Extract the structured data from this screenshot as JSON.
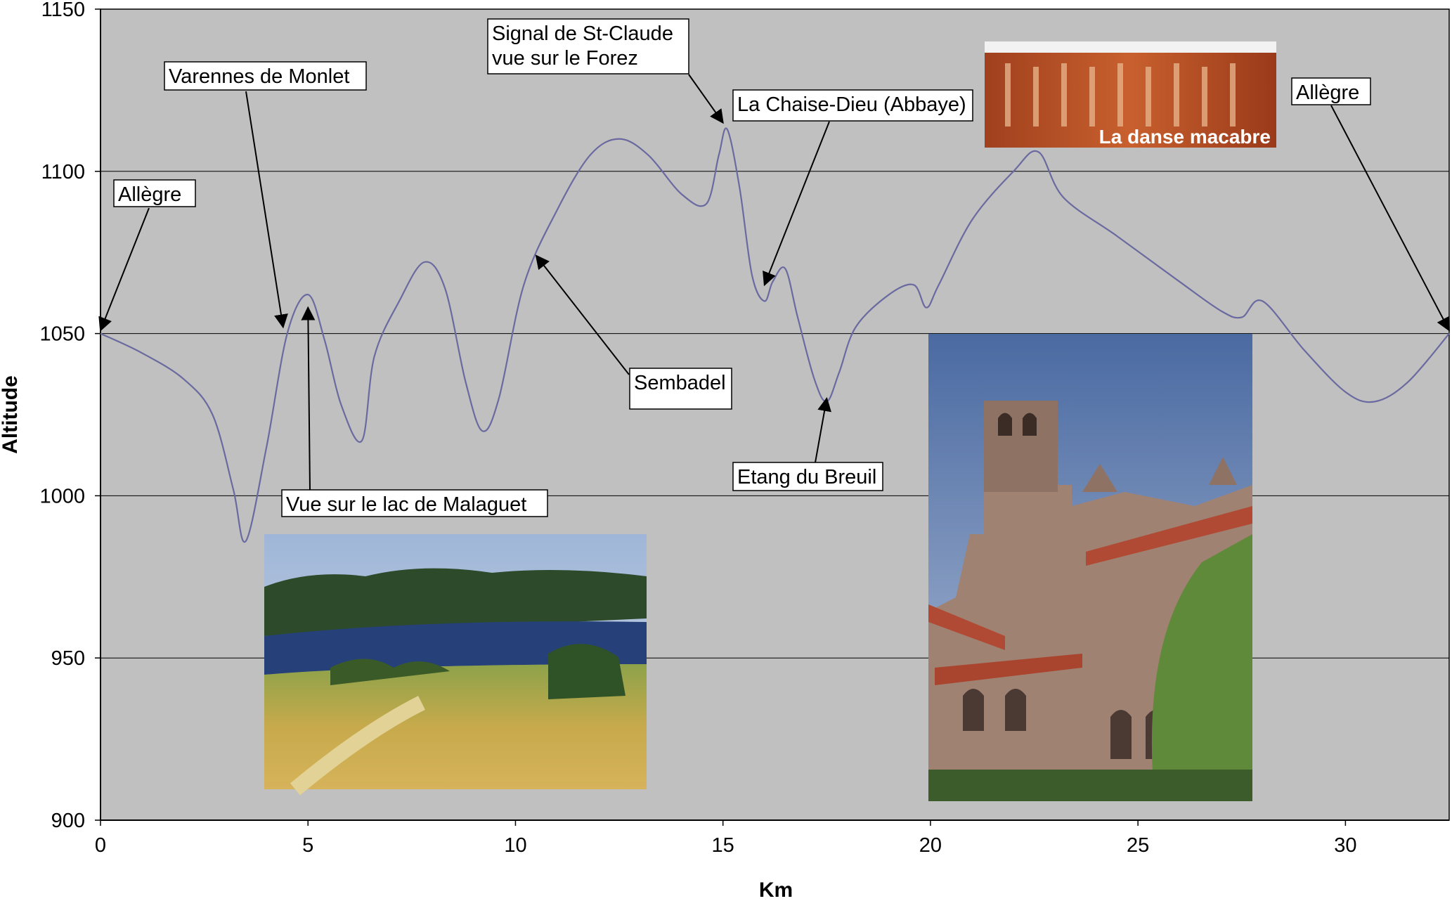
{
  "chart_data": {
    "type": "line",
    "title": "",
    "xlabel": "Km",
    "ylabel": "Altitude",
    "xlim": [
      0,
      32.5
    ],
    "ylim": [
      900,
      1150
    ],
    "x_ticks": [
      0,
      5,
      10,
      15,
      20,
      25,
      30
    ],
    "y_ticks": [
      900,
      950,
      1000,
      1050,
      1100,
      1150
    ],
    "grid": "horizontal",
    "background": "#c0c0c0",
    "series": [
      {
        "color": "#6a6aa0",
        "x": [
          0,
          1,
          2,
          2.7,
          3.2,
          3.5,
          4.0,
          4.5,
          5.0,
          5.4,
          5.8,
          6.3,
          6.6,
          7.2,
          7.8,
          8.3,
          8.8,
          9.2,
          9.6,
          10.2,
          11.0,
          11.8,
          12.5,
          13.2,
          14.0,
          14.6,
          14.9,
          15.1,
          15.4,
          15.7,
          16.0,
          16.2,
          16.5,
          16.8,
          17.2,
          17.5,
          17.8,
          18.2,
          19.0,
          19.6,
          19.9,
          20.2,
          21.0,
          22.0,
          22.6,
          23.2,
          24.5,
          26.0,
          27.0,
          27.5,
          28.0,
          29.0,
          30.0,
          30.7,
          31.5,
          32.5
        ],
        "y": [
          1050,
          1044,
          1036,
          1025,
          1002,
          986,
          1015,
          1050,
          1062,
          1048,
          1028,
          1017,
          1043,
          1060,
          1072,
          1064,
          1035,
          1020,
          1030,
          1065,
          1088,
          1105,
          1110,
          1105,
          1093,
          1090,
          1105,
          1113,
          1095,
          1068,
          1060,
          1066,
          1070,
          1055,
          1036,
          1029,
          1038,
          1052,
          1062,
          1065,
          1058,
          1065,
          1085,
          1100,
          1106,
          1092,
          1080,
          1066,
          1057,
          1055,
          1060,
          1045,
          1032,
          1029,
          1035,
          1050
        ]
      }
    ],
    "annotations": [
      {
        "id": "allegre-start",
        "text": [
          "Allègre"
        ],
        "point": [
          0,
          1051
        ]
      },
      {
        "id": "varennes",
        "text": [
          "Varennes de Monlet"
        ],
        "point": [
          4.4,
          1052
        ]
      },
      {
        "id": "malaguet",
        "text": [
          "Vue sur le lac de Malaguet"
        ],
        "point": [
          5.0,
          1058
        ]
      },
      {
        "id": "sembadel",
        "text": [
          "Sembadel"
        ],
        "point": [
          10.5,
          1074
        ]
      },
      {
        "id": "signal",
        "text": [
          "Signal de St-Claude",
          "vue sur le Forez"
        ],
        "point": [
          15.0,
          1115
        ]
      },
      {
        "id": "chaise-dieu",
        "text": [
          "La Chaise-Dieu (Abbaye)"
        ],
        "point": [
          16.0,
          1065
        ]
      },
      {
        "id": "etang",
        "text": [
          "Etang du Breuil"
        ],
        "point": [
          17.5,
          1030
        ]
      },
      {
        "id": "allegre-end",
        "text": [
          "Allègre"
        ],
        "point": [
          32.5,
          1051
        ]
      }
    ],
    "photos": [
      {
        "id": "lake-photo",
        "subject": "lake"
      },
      {
        "id": "abbey-photo",
        "subject": "abbey"
      },
      {
        "id": "fresco-photo",
        "subject": "fresco",
        "caption": "La danse macabre"
      }
    ]
  }
}
